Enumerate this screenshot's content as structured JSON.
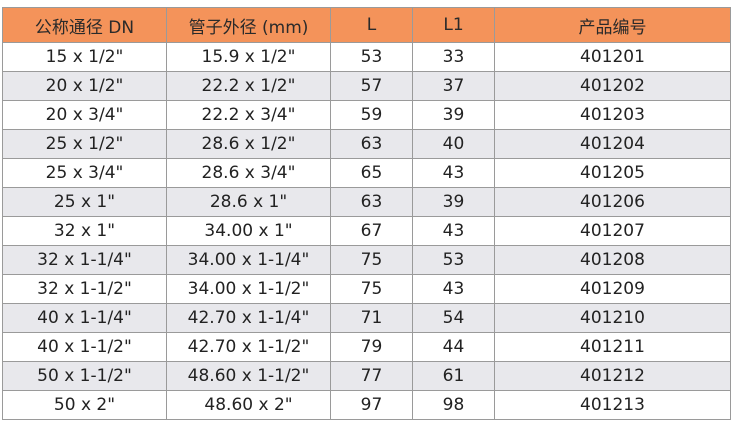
{
  "colors": {
    "header_bg": "#f4935a",
    "alt_row_bg": "#e8e8ec",
    "border": "#9a9a9a"
  },
  "headers": [
    "公称通径 DN",
    "管子外径 (mm)",
    "L",
    "L1",
    "产品编号"
  ],
  "rows": [
    [
      "15 x 1/2\"",
      "15.9 x 1/2\"",
      "53",
      "33",
      "401201"
    ],
    [
      "20 x 1/2\"",
      "22.2 x 1/2\"",
      "57",
      "37",
      "401202"
    ],
    [
      "20 x 3/4\"",
      "22.2 x 3/4\"",
      "59",
      "39",
      "401203"
    ],
    [
      "25 x 1/2\"",
      "28.6 x 1/2\"",
      "63",
      "40",
      "401204"
    ],
    [
      "25 x 3/4\"",
      "28.6 x 3/4\"",
      "65",
      "43",
      "401205"
    ],
    [
      "25 x 1\"",
      "28.6 x 1\"",
      "63",
      "39",
      "401206"
    ],
    [
      "32 x 1\"",
      "34.00 x 1\"",
      "67",
      "43",
      "401207"
    ],
    [
      "32 x 1-1/4\"",
      "34.00 x 1-1/4\"",
      "75",
      "53",
      "401208"
    ],
    [
      "32 x 1-1/2\"",
      "34.00 x 1-1/2\"",
      "75",
      "43",
      "401209"
    ],
    [
      "40 x 1-1/4\"",
      "42.70 x 1-1/4\"",
      "71",
      "54",
      "401210"
    ],
    [
      "40 x 1-1/2\"",
      "42.70 x 1-1/2\"",
      "79",
      "44",
      "401211"
    ],
    [
      "50 x 1-1/2\"",
      "48.60 x 1-1/2\"",
      "77",
      "61",
      "401212"
    ],
    [
      "50 x 2\"",
      "48.60 x 2\"",
      "97",
      "98",
      "401213"
    ]
  ]
}
